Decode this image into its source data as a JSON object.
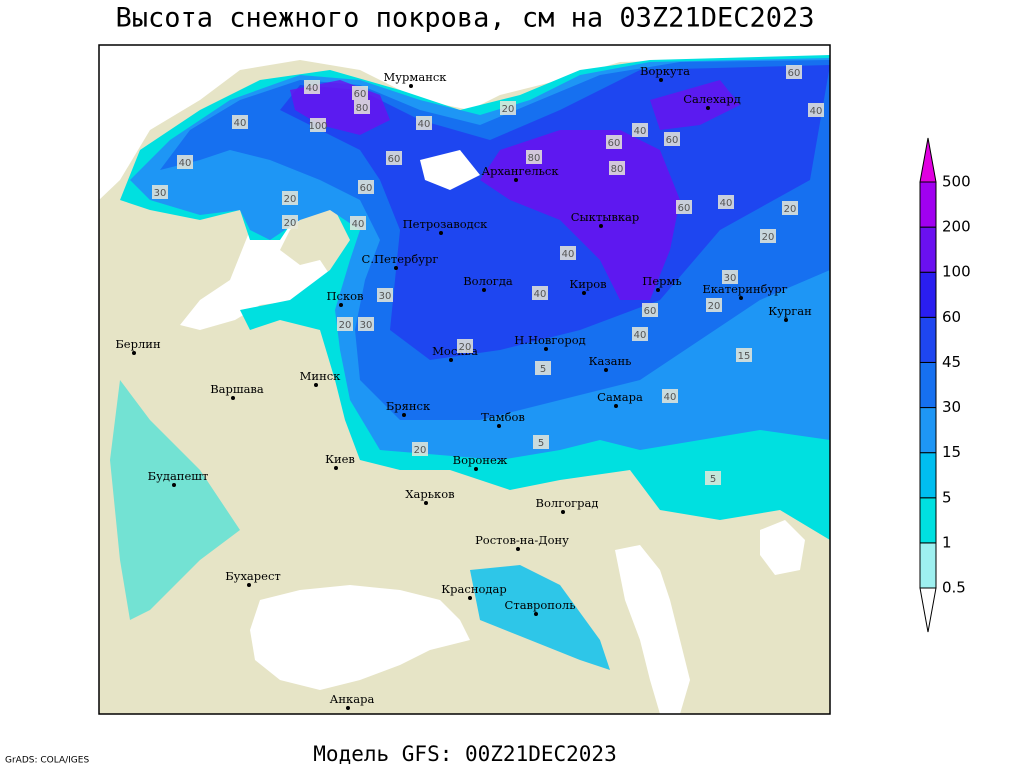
{
  "title": "Высота снежного покрова, см на 03Z21DEC2023",
  "footer": "Модель GFS: 00Z21DEC2023",
  "credit": "GrADS: COLA/IGES",
  "cities": [
    "Мурманск",
    "Воркута",
    "Салехард",
    "Архангельск",
    "Сыктывкар",
    "Петрозаводск",
    "С.Петербург",
    "Вологда",
    "Киров",
    "Пермь",
    "Екатеринбург",
    "Курган",
    "Псков",
    "Берлин",
    "Н.Новгород",
    "Москва",
    "Казань",
    "Минск",
    "Варшава",
    "Самара",
    "Брянск",
    "Тамбов",
    "Киев",
    "Воронеж",
    "Будапешт",
    "Харьков",
    "Волгоград",
    "Ростов-на-Дону",
    "Бухарест",
    "Краснодар",
    "Ставрополь",
    "Анкара"
  ],
  "contour_labels": [
    40,
    60,
    80,
    100,
    40,
    40,
    60,
    40,
    20,
    60,
    80,
    80,
    60,
    40,
    60,
    60,
    40,
    20,
    40,
    40,
    20,
    30,
    40,
    30,
    60,
    40,
    20,
    30,
    20,
    5,
    5,
    20,
    40,
    60,
    20,
    30,
    20,
    15,
    5,
    40,
    20
  ],
  "legend": {
    "levels": [
      0.5,
      1,
      5,
      15,
      30,
      45,
      60,
      100,
      200,
      500
    ],
    "colors": [
      "#ffffff",
      "#9ef0f0",
      "#00e0e0",
      "#00bef0",
      "#1e96f5",
      "#1670f0",
      "#1e46f0",
      "#2a1ef0",
      "#6a10f0",
      "#a000f0",
      "#e000e0"
    ]
  }
}
